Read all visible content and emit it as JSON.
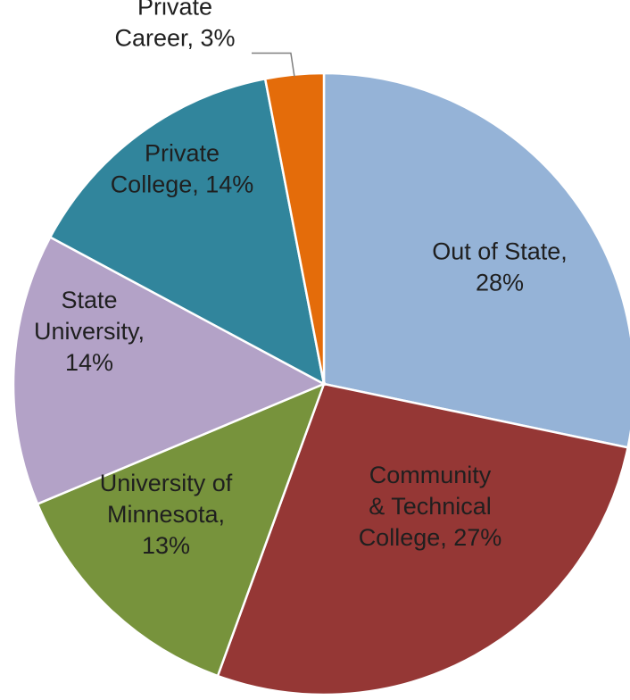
{
  "chart_data": {
    "type": "pie",
    "title": "",
    "slices": [
      {
        "label": [
          "Out of State,",
          "28%"
        ],
        "value": 28,
        "color": "#95b3d7"
      },
      {
        "label": [
          "Community",
          "& Technical",
          "College, 27%"
        ],
        "value": 27,
        "color": "#953735"
      },
      {
        "label": [
          "University of",
          "Minnesota,",
          "13%"
        ],
        "value": 13,
        "color": "#77933c"
      },
      {
        "label": [
          "State",
          "University,",
          "14%"
        ],
        "value": 14,
        "color": "#b3a2c7"
      },
      {
        "label": [
          "Private",
          "College, 14%"
        ],
        "value": 14,
        "color": "#31859c"
      },
      {
        "label": [
          "Private",
          "Career, 3%"
        ],
        "value": 3,
        "color": "#e46c0a"
      }
    ]
  }
}
